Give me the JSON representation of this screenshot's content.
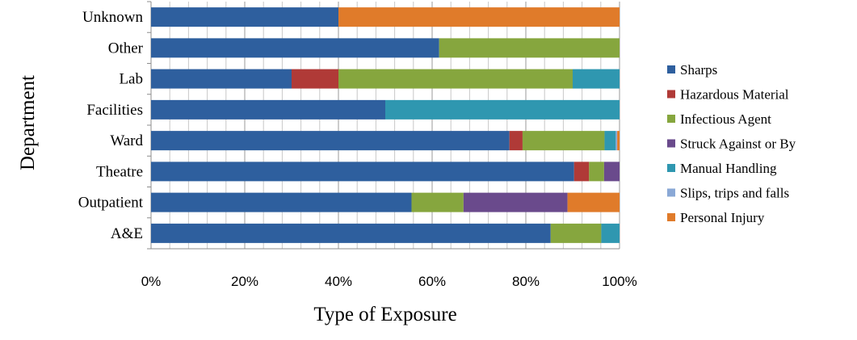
{
  "chart_data": {
    "type": "bar",
    "orientation": "horizontal",
    "stacked": "percent",
    "xlabel": "Type of Exposure",
    "ylabel": "Department",
    "xlim": [
      0,
      100
    ],
    "x_ticks": [
      "0%",
      "20%",
      "40%",
      "60%",
      "80%",
      "100%"
    ],
    "grid": "vertical",
    "legend_position": "right",
    "categories": [
      "Unknown",
      "Other",
      "Lab",
      "Facilities",
      "Ward",
      "Theatre",
      "Outpatient",
      "A&E"
    ],
    "series": [
      {
        "name": "Sharps",
        "color": "#2e5f9e",
        "values": [
          40,
          61.5,
          30,
          50,
          76.5,
          90.3,
          55.6,
          85.3
        ]
      },
      {
        "name": "Hazardous Material",
        "color": "#b03a37",
        "values": [
          0,
          0,
          10,
          0,
          2.8,
          3.2,
          0,
          0
        ]
      },
      {
        "name": "Infectious Agent",
        "color": "#86a63e",
        "values": [
          0,
          38.5,
          50,
          0,
          17.5,
          3.2,
          11.1,
          10.8
        ]
      },
      {
        "name": "Struck Against or By",
        "color": "#6a4a8c",
        "values": [
          0,
          0,
          0,
          0,
          0,
          3.3,
          22.2,
          0
        ]
      },
      {
        "name": "Manual Handling",
        "color": "#2f97b0",
        "values": [
          0,
          0,
          10,
          50,
          2.4,
          0,
          0,
          3.9
        ]
      },
      {
        "name": "Slips, trips and falls",
        "color": "#8aa8d6",
        "values": [
          0,
          0,
          0,
          0,
          0.3,
          0,
          0,
          0
        ]
      },
      {
        "name": "Personal Injury",
        "color": "#e07b2a",
        "values": [
          60,
          0,
          0,
          0,
          0.5,
          0,
          11.1,
          0
        ]
      }
    ]
  }
}
